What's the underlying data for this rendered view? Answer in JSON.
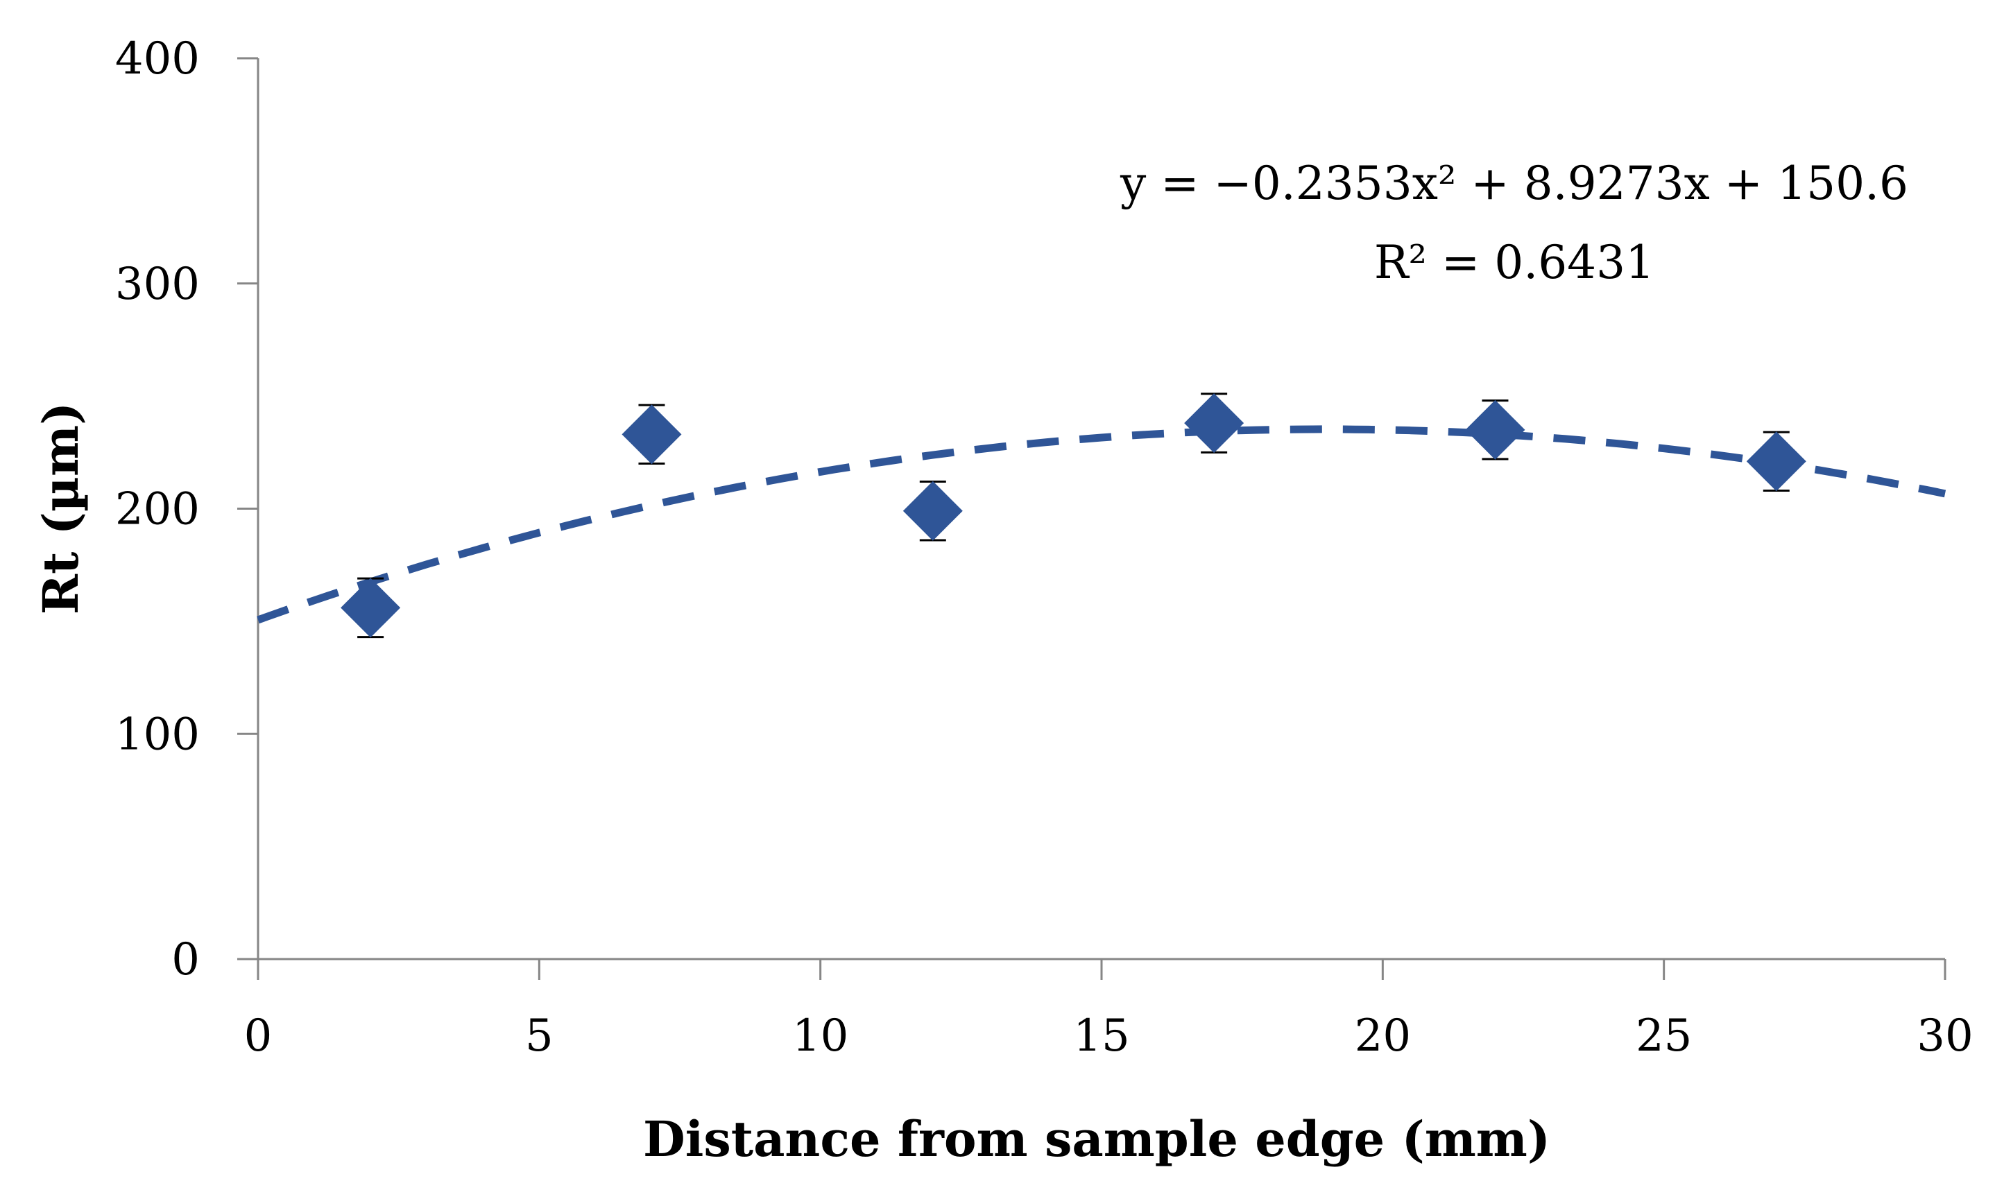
{
  "chart_data": {
    "type": "scatter",
    "title": "",
    "xlabel": "Distance from sample edge (mm)",
    "ylabel": "Rt (µm)",
    "xlim": [
      0,
      30
    ],
    "ylim": [
      0,
      400
    ],
    "xticks": [
      0,
      5,
      10,
      15,
      20,
      25,
      30
    ],
    "yticks": [
      0,
      100,
      200,
      300,
      400
    ],
    "grid": false,
    "legend": "none",
    "series": [
      {
        "name": "Rt",
        "marker": "diamond",
        "color": "#2F5597",
        "x": [
          2,
          7,
          12,
          17,
          22,
          27
        ],
        "y": [
          156,
          233,
          199,
          238,
          235,
          221
        ],
        "error": [
          13,
          13,
          13,
          13,
          13,
          13
        ]
      }
    ],
    "trendline": {
      "type": "polynomial",
      "order": 2,
      "coefficients": [
        -0.2353,
        8.9273,
        150.6
      ],
      "style": "dashed",
      "color": "#2F5597",
      "x_range": [
        0,
        30
      ]
    },
    "annotations": {
      "equation": "y = −0.2353x² + 8.9273x + 150.6",
      "r_squared": "R² = 0.6431"
    },
    "colors": {
      "axis": "#868686",
      "series": "#2F5597",
      "text": "#000000"
    }
  }
}
